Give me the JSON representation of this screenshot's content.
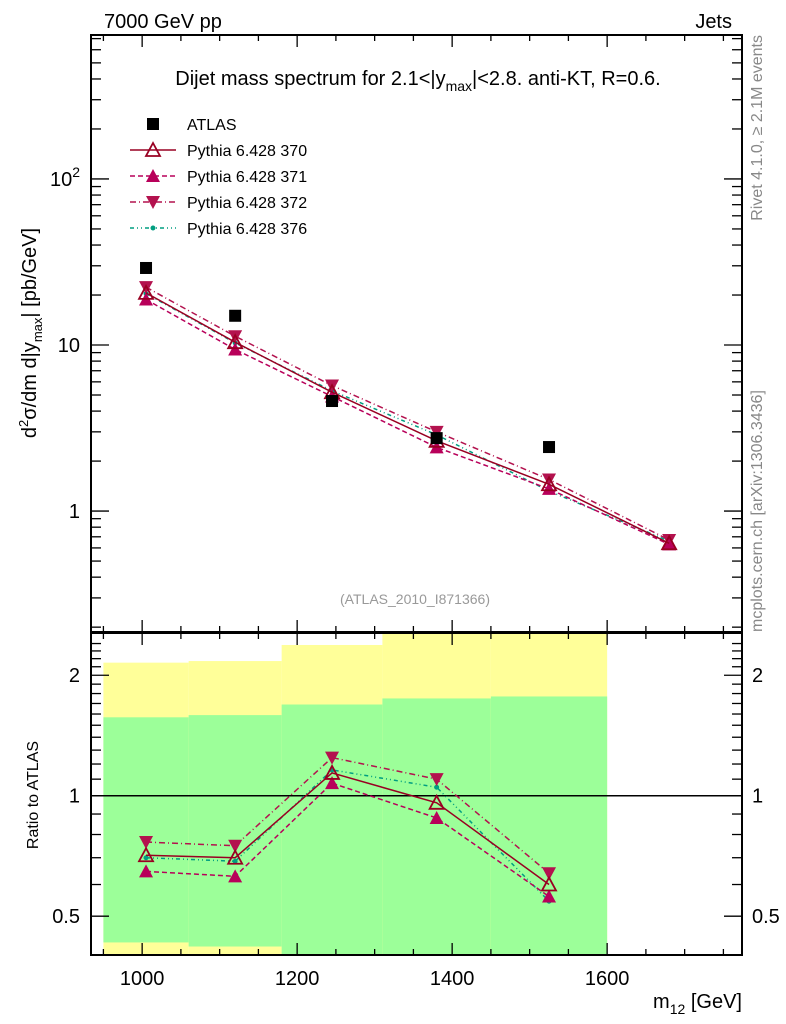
{
  "header": {
    "left": "7000 GeV pp",
    "right": "Jets"
  },
  "side_labels": {
    "rivet": "Rivet 4.1.0, ≥ 2.1M events",
    "mcplots": "mcplots.cern.ch [arXiv:1306.3436]"
  },
  "colors": {
    "atlas": "#000000",
    "p370": "#990022",
    "p371": "#b8005a",
    "p372": "#b3124e",
    "p376": "#009e80",
    "band_inner": "#9cff99",
    "band_outer": "#ffff99"
  },
  "chart_data": [
    {
      "type": "scatter",
      "title": "Dijet mass spectrum for 2.1<|y_max|<2.8.  anti-KT, R=0.6.",
      "title_parts": {
        "a": "Dijet mass spectrum for 2.1<|y",
        "sub": "max",
        "b": "|<2.8.  anti-KT, R=0.6."
      },
      "ylabel": "d²σ/dm d|y_max| [pb/GeV]",
      "ylabel_parts": {
        "a": "d",
        "sup": "2",
        "b": "σ/dm d|y",
        "sub": "max",
        "c": "| [pb/GeV]"
      },
      "yscale": "log",
      "ylim": [
        0.187,
        736
      ],
      "xlim": [
        934,
        1774
      ],
      "yticks": [
        {
          "v": 100,
          "label": "10",
          "sup": "2"
        },
        {
          "v": 10,
          "label": "10",
          "sup": ""
        },
        {
          "v": 1,
          "label": "1",
          "sup": ""
        }
      ],
      "annotation": "(ATLAS_2010_I871366)",
      "legend_position": "top-left",
      "series": [
        {
          "name": "ATLAS",
          "key": "atlas",
          "marker": "square",
          "line": "none",
          "x": [
            1005,
            1120,
            1245,
            1380,
            1525
          ],
          "y": [
            29.1,
            15.0,
            4.6,
            2.75,
            2.43
          ]
        },
        {
          "name": "Pythia 6.428 370",
          "key": "p370",
          "marker": "open-triangle-up",
          "line": "solid",
          "x": [
            1005,
            1120,
            1245,
            1380,
            1525,
            1680
          ],
          "y": [
            20.6,
            10.4,
            5.2,
            2.65,
            1.45,
            0.64
          ]
        },
        {
          "name": "Pythia 6.428 371",
          "key": "p371",
          "marker": "triangle-up",
          "line": "dashed",
          "x": [
            1005,
            1120,
            1245,
            1380,
            1525,
            1680
          ],
          "y": [
            18.8,
            9.4,
            4.9,
            2.42,
            1.36,
            0.63
          ]
        },
        {
          "name": "Pythia 6.428 372",
          "key": "p372",
          "marker": "triangle-down",
          "line": "dashdot",
          "x": [
            1005,
            1120,
            1245,
            1380,
            1525,
            1680
          ],
          "y": [
            22.3,
            11.3,
            5.7,
            3.0,
            1.55,
            0.67
          ]
        },
        {
          "name": "Pythia 6.428 376",
          "key": "p376",
          "marker": "dot",
          "line": "dashdotdot",
          "x": [
            1005,
            1120,
            1245,
            1380,
            1525,
            1680
          ],
          "y": [
            20.4,
            10.3,
            5.3,
            2.88,
            1.32,
            0.66
          ]
        }
      ]
    },
    {
      "type": "scatter",
      "ylabel": "Ratio to ATLAS",
      "xlabel": "m_12 [GeV]",
      "xlabel_parts": {
        "a": "m",
        "sub": "12",
        "b": " [GeV]"
      },
      "yscale": "log",
      "ylim": [
        0.4,
        2.55
      ],
      "xlim": [
        934,
        1774
      ],
      "xticks": [
        1000,
        1200,
        1400,
        1600
      ],
      "yticks": [
        {
          "v": 2,
          "label": "2"
        },
        {
          "v": 1,
          "label": "1"
        },
        {
          "v": 0.5,
          "label": "0.5"
        }
      ],
      "reference_line": 1,
      "bands": [
        {
          "xlo": 950,
          "xhi": 1060,
          "outer": [
            0.3,
            2.15
          ],
          "inner": [
            0.43,
            1.57
          ]
        },
        {
          "xlo": 1060,
          "xhi": 1180,
          "outer": [
            0.3,
            2.17
          ],
          "inner": [
            0.42,
            1.59
          ]
        },
        {
          "xlo": 1180,
          "xhi": 1310,
          "outer": [
            0.3,
            2.38
          ],
          "inner": [
            0.3,
            1.69
          ]
        },
        {
          "xlo": 1310,
          "xhi": 1450,
          "outer": [
            0.3,
            2.7
          ],
          "inner": [
            0.3,
            1.75
          ]
        },
        {
          "xlo": 1450,
          "xhi": 1600,
          "outer": [
            0.3,
            2.7
          ],
          "inner": [
            0.3,
            1.77
          ]
        }
      ],
      "series": [
        {
          "name": "Pythia 6.428 370",
          "key": "p370",
          "marker": "open-triangle-up",
          "line": "solid",
          "x": [
            1005,
            1120,
            1245,
            1380,
            1525
          ],
          "y": [
            0.71,
            0.7,
            1.14,
            0.96,
            0.6
          ]
        },
        {
          "name": "Pythia 6.428 371",
          "key": "p371",
          "marker": "triangle-up",
          "line": "dashed",
          "x": [
            1005,
            1120,
            1245,
            1380,
            1525
          ],
          "y": [
            0.647,
            0.629,
            1.075,
            0.88,
            0.56
          ]
        },
        {
          "name": "Pythia 6.428 372",
          "key": "p372",
          "marker": "triangle-down",
          "line": "dashdot",
          "x": [
            1005,
            1120,
            1245,
            1380,
            1525
          ],
          "y": [
            0.766,
            0.75,
            1.245,
            1.1,
            0.64
          ]
        },
        {
          "name": "Pythia 6.428 376",
          "key": "p376",
          "marker": "dot",
          "line": "dashdotdot",
          "x": [
            1005,
            1120,
            1245,
            1380,
            1525
          ],
          "y": [
            0.7,
            0.686,
            1.16,
            1.05,
            0.545
          ]
        }
      ]
    }
  ]
}
